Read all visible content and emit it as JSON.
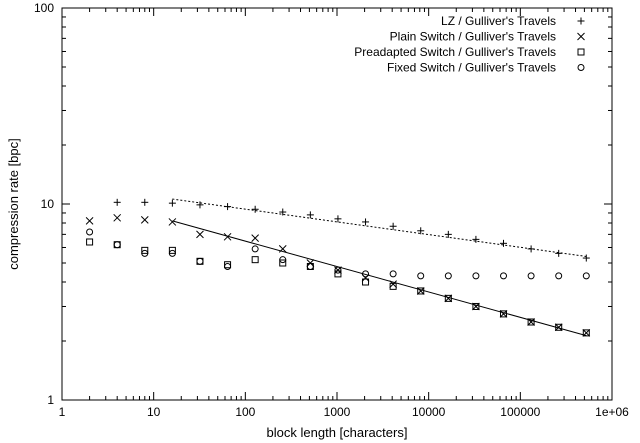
{
  "chart_data": {
    "type": "scatter",
    "title": "",
    "xlabel": "block length [characters]",
    "ylabel": "compression rate [bpc]",
    "xscale": "log",
    "yscale": "log",
    "xlim": [
      1,
      1000000
    ],
    "ylim": [
      1,
      100
    ],
    "x_ticks": [
      {
        "value": 1,
        "label": "1"
      },
      {
        "value": 10,
        "label": "10"
      },
      {
        "value": 100,
        "label": "100"
      },
      {
        "value": 1000,
        "label": "1000"
      },
      {
        "value": 10000,
        "label": "10000"
      },
      {
        "value": 100000,
        "label": "100000"
      },
      {
        "value": 1000000,
        "label": "1e+06"
      }
    ],
    "y_ticks": [
      {
        "value": 1,
        "label": "1"
      },
      {
        "value": 10,
        "label": "10"
      },
      {
        "value": 100,
        "label": "100"
      }
    ],
    "grid": false,
    "legend_position": "top-right",
    "x": [
      2,
      4,
      8,
      16,
      32,
      64,
      128,
      256,
      512,
      1024,
      2048,
      4096,
      8192,
      16384,
      32768,
      65536,
      131072,
      262144,
      524288
    ],
    "series": [
      {
        "name": "LZ / Gulliver's Travels",
        "marker": "plus",
        "values": [
          null,
          10.2,
          10.2,
          10.1,
          9.9,
          9.7,
          9.4,
          9.1,
          8.8,
          8.4,
          8.1,
          7.7,
          7.3,
          7.0,
          6.6,
          6.3,
          5.9,
          5.6,
          5.3
        ]
      },
      {
        "name": "Plain Switch / Gulliver's Travels",
        "marker": "cross",
        "values": [
          8.2,
          8.5,
          8.3,
          8.1,
          7.0,
          6.8,
          6.7,
          5.9,
          5.0,
          4.6,
          4.2,
          3.9,
          3.6,
          3.3,
          3.0,
          2.75,
          2.5,
          2.35,
          2.2
        ]
      },
      {
        "name": "Preadapted Switch / Gulliver's Travels",
        "marker": "square",
        "values": [
          6.4,
          6.2,
          5.8,
          5.8,
          5.1,
          4.9,
          5.2,
          5.0,
          4.8,
          4.4,
          4.0,
          3.8,
          3.6,
          3.3,
          3.0,
          2.75,
          2.5,
          2.35,
          2.2
        ]
      },
      {
        "name": "Fixed Switch / Gulliver's Travels",
        "marker": "circle",
        "values": [
          7.2,
          6.2,
          5.6,
          5.6,
          5.1,
          4.8,
          5.9,
          5.2,
          4.8,
          4.6,
          4.4,
          4.4,
          4.3,
          4.3,
          4.3,
          4.3,
          4.3,
          4.3,
          4.3
        ]
      }
    ],
    "fit_lines": [
      {
        "style": "dashed",
        "x": [
          16,
          524288
        ],
        "y": [
          10.6,
          5.4
        ]
      },
      {
        "style": "solid",
        "x": [
          16,
          524288
        ],
        "y": [
          8.2,
          2.13
        ]
      }
    ]
  }
}
